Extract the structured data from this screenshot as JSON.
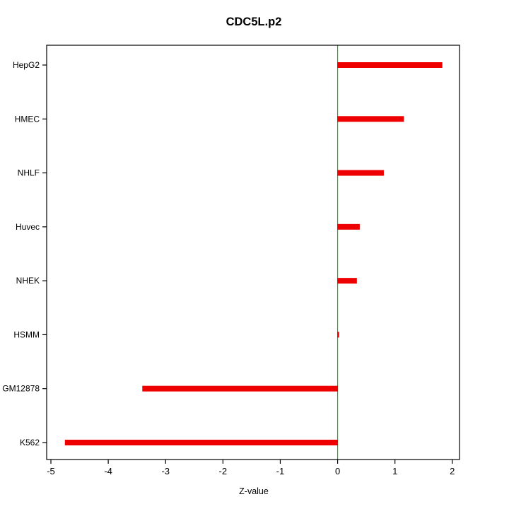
{
  "title": "CDC5L.p2",
  "chart_data": {
    "type": "bar",
    "orientation": "horizontal",
    "title": "CDC5L.p2",
    "xlabel": "Z-value",
    "ylabel": "",
    "categories": [
      "HepG2",
      "HMEC",
      "NHLF",
      "Huvec",
      "NHEK",
      "HSMM",
      "GM12878",
      "K562"
    ],
    "values": [
      1.82,
      1.15,
      0.8,
      0.38,
      0.33,
      0.02,
      -3.4,
      -4.75
    ],
    "xlim": [
      -5,
      2
    ],
    "xticks": [
      -5,
      -4,
      -3,
      -2,
      -1,
      0,
      1,
      2
    ],
    "zero_line": 0,
    "zero_line_color": "#00bb00",
    "bar_color": "#ee0000",
    "box_color": "#000000",
    "grid": false,
    "legend": "none"
  }
}
